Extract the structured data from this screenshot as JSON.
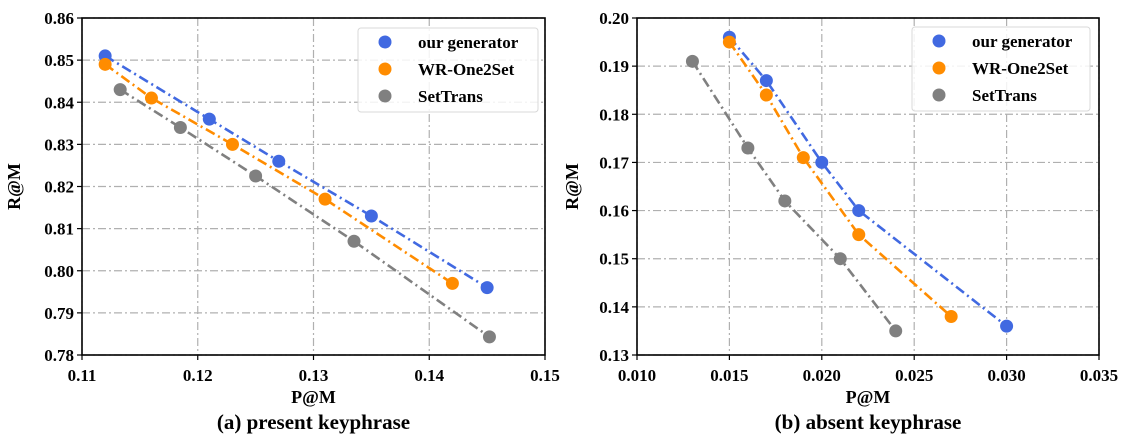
{
  "chart_data": [
    {
      "type": "line",
      "caption": "(a) present keyphrase",
      "xlabel": "P@M",
      "ylabel": "R@M",
      "xlim": [
        0.11,
        0.15
      ],
      "ylim": [
        0.78,
        0.86
      ],
      "xticks": [
        "0.11",
        "0.12",
        "0.13",
        "0.14",
        "0.15"
      ],
      "yticks": [
        "0.78",
        "0.79",
        "0.80",
        "0.81",
        "0.82",
        "0.83",
        "0.84",
        "0.85",
        "0.86"
      ],
      "grid": true,
      "legend_position": "top-right",
      "series": [
        {
          "name": "our generator",
          "color": "#4169E1",
          "x": [
            0.112,
            0.121,
            0.127,
            0.135,
            0.145
          ],
          "y": [
            0.851,
            0.836,
            0.826,
            0.813,
            0.796
          ]
        },
        {
          "name": "WR-One2Set",
          "color": "#FF8C00",
          "x": [
            0.112,
            0.116,
            0.123,
            0.131,
            0.142
          ],
          "y": [
            0.849,
            0.841,
            0.83,
            0.817,
            0.797
          ]
        },
        {
          "name": "SetTrans",
          "color": "#808080",
          "x": [
            0.1133,
            0.1185,
            0.125,
            0.1335,
            0.1452
          ],
          "y": [
            0.843,
            0.834,
            0.8225,
            0.807,
            0.7843
          ]
        }
      ]
    },
    {
      "type": "line",
      "caption": "(b) absent keyphrase",
      "xlabel": "P@M",
      "ylabel": "R@M",
      "xlim": [
        0.01,
        0.035
      ],
      "ylim": [
        0.13,
        0.2
      ],
      "xticks": [
        "0.010",
        "0.015",
        "0.020",
        "0.025",
        "0.030",
        "0.035"
      ],
      "yticks": [
        "0.13",
        "0.14",
        "0.15",
        "0.16",
        "0.17",
        "0.18",
        "0.19",
        "0.20"
      ],
      "grid": true,
      "legend_position": "top-right",
      "series": [
        {
          "name": "our generator",
          "color": "#4169E1",
          "x": [
            0.015,
            0.017,
            0.02,
            0.022,
            0.03
          ],
          "y": [
            0.196,
            0.187,
            0.17,
            0.16,
            0.136
          ]
        },
        {
          "name": "WR-One2Set",
          "color": "#FF8C00",
          "x": [
            0.015,
            0.017,
            0.019,
            0.022,
            0.027
          ],
          "y": [
            0.195,
            0.184,
            0.171,
            0.155,
            0.138
          ]
        },
        {
          "name": "SetTrans",
          "color": "#808080",
          "x": [
            0.013,
            0.016,
            0.018,
            0.021,
            0.024
          ],
          "y": [
            0.191,
            0.173,
            0.162,
            0.15,
            0.135
          ]
        }
      ]
    }
  ]
}
